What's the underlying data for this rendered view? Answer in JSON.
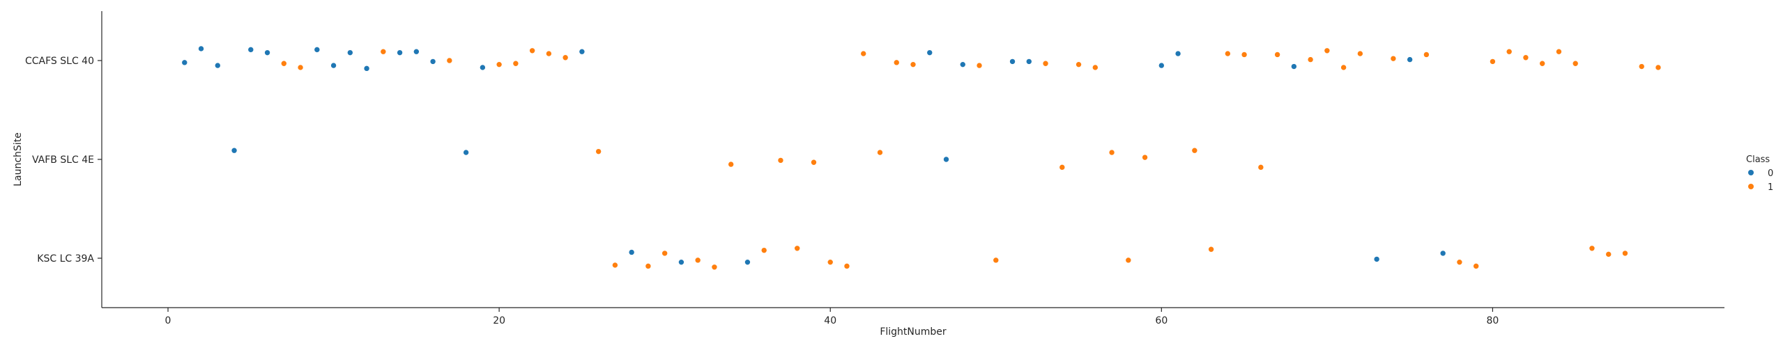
{
  "chart_data": {
    "type": "scatter",
    "xlabel": "FlightNumber",
    "ylabel": "LaunchSite",
    "xlim": [
      -4,
      94
    ],
    "x_ticks": [
      0,
      20,
      40,
      60,
      80
    ],
    "categories": [
      "CCAFS SLC 40",
      "VAFB SLC 4E",
      "KSC LC 39A"
    ],
    "legend": {
      "title": "Class",
      "placement": "right",
      "entries": [
        {
          "label": "0",
          "color": "#1f77b4"
        },
        {
          "label": "1",
          "color": "#ff7f0e"
        }
      ]
    },
    "points": [
      {
        "x": 1,
        "site": "CCAFS SLC 40",
        "class": 0,
        "jitter": -0.02
      },
      {
        "x": 2,
        "site": "CCAFS SLC 40",
        "class": 0,
        "jitter": 0.12
      },
      {
        "x": 3,
        "site": "CCAFS SLC 40",
        "class": 0,
        "jitter": -0.05
      },
      {
        "x": 4,
        "site": "VAFB SLC 4E",
        "class": 0,
        "jitter": 0.09
      },
      {
        "x": 5,
        "site": "CCAFS SLC 40",
        "class": 0,
        "jitter": 0.11
      },
      {
        "x": 6,
        "site": "CCAFS SLC 40",
        "class": 0,
        "jitter": 0.08
      },
      {
        "x": 7,
        "site": "CCAFS SLC 40",
        "class": 1,
        "jitter": -0.03
      },
      {
        "x": 8,
        "site": "CCAFS SLC 40",
        "class": 1,
        "jitter": -0.07
      },
      {
        "x": 9,
        "site": "CCAFS SLC 40",
        "class": 0,
        "jitter": 0.11
      },
      {
        "x": 10,
        "site": "CCAFS SLC 40",
        "class": 0,
        "jitter": -0.05
      },
      {
        "x": 11,
        "site": "CCAFS SLC 40",
        "class": 0,
        "jitter": 0.08
      },
      {
        "x": 12,
        "site": "CCAFS SLC 40",
        "class": 0,
        "jitter": -0.08
      },
      {
        "x": 13,
        "site": "CCAFS SLC 40",
        "class": 1,
        "jitter": 0.09
      },
      {
        "x": 14,
        "site": "CCAFS SLC 40",
        "class": 0,
        "jitter": 0.08
      },
      {
        "x": 15,
        "site": "CCAFS SLC 40",
        "class": 0,
        "jitter": 0.09
      },
      {
        "x": 16,
        "site": "CCAFS SLC 40",
        "class": 0,
        "jitter": -0.01
      },
      {
        "x": 17,
        "site": "CCAFS SLC 40",
        "class": 1,
        "jitter": 0.0
      },
      {
        "x": 18,
        "site": "VAFB SLC 4E",
        "class": 0,
        "jitter": 0.07
      },
      {
        "x": 19,
        "site": "CCAFS SLC 40",
        "class": 0,
        "jitter": -0.07
      },
      {
        "x": 20,
        "site": "CCAFS SLC 40",
        "class": 1,
        "jitter": -0.04
      },
      {
        "x": 21,
        "site": "CCAFS SLC 40",
        "class": 1,
        "jitter": -0.03
      },
      {
        "x": 22,
        "site": "CCAFS SLC 40",
        "class": 1,
        "jitter": 0.1
      },
      {
        "x": 23,
        "site": "CCAFS SLC 40",
        "class": 1,
        "jitter": 0.07
      },
      {
        "x": 24,
        "site": "CCAFS SLC 40",
        "class": 1,
        "jitter": 0.03
      },
      {
        "x": 25,
        "site": "CCAFS SLC 40",
        "class": 0,
        "jitter": 0.09
      },
      {
        "x": 26,
        "site": "VAFB SLC 4E",
        "class": 1,
        "jitter": 0.08
      },
      {
        "x": 27,
        "site": "KSC LC 39A",
        "class": 1,
        "jitter": -0.07
      },
      {
        "x": 28,
        "site": "KSC LC 39A",
        "class": 0,
        "jitter": 0.06
      },
      {
        "x": 29,
        "site": "KSC LC 39A",
        "class": 1,
        "jitter": -0.08
      },
      {
        "x": 30,
        "site": "KSC LC 39A",
        "class": 1,
        "jitter": 0.05
      },
      {
        "x": 31,
        "site": "KSC LC 39A",
        "class": 0,
        "jitter": -0.04
      },
      {
        "x": 32,
        "site": "KSC LC 39A",
        "class": 1,
        "jitter": -0.02
      },
      {
        "x": 33,
        "site": "KSC LC 39A",
        "class": 1,
        "jitter": -0.09
      },
      {
        "x": 34,
        "site": "VAFB SLC 4E",
        "class": 1,
        "jitter": -0.05
      },
      {
        "x": 35,
        "site": "KSC LC 39A",
        "class": 0,
        "jitter": -0.04
      },
      {
        "x": 36,
        "site": "KSC LC 39A",
        "class": 1,
        "jitter": 0.08
      },
      {
        "x": 37,
        "site": "VAFB SLC 4E",
        "class": 1,
        "jitter": -0.01
      },
      {
        "x": 38,
        "site": "KSC LC 39A",
        "class": 1,
        "jitter": 0.1
      },
      {
        "x": 39,
        "site": "VAFB SLC 4E",
        "class": 1,
        "jitter": -0.03
      },
      {
        "x": 40,
        "site": "KSC LC 39A",
        "class": 1,
        "jitter": -0.04
      },
      {
        "x": 41,
        "site": "KSC LC 39A",
        "class": 1,
        "jitter": -0.08
      },
      {
        "x": 42,
        "site": "CCAFS SLC 40",
        "class": 1,
        "jitter": 0.07
      },
      {
        "x": 43,
        "site": "VAFB SLC 4E",
        "class": 1,
        "jitter": 0.07
      },
      {
        "x": 44,
        "site": "CCAFS SLC 40",
        "class": 1,
        "jitter": -0.02
      },
      {
        "x": 45,
        "site": "CCAFS SLC 40",
        "class": 1,
        "jitter": -0.04
      },
      {
        "x": 46,
        "site": "CCAFS SLC 40",
        "class": 0,
        "jitter": 0.08
      },
      {
        "x": 47,
        "site": "VAFB SLC 4E",
        "class": 0,
        "jitter": 0.0
      },
      {
        "x": 48,
        "site": "CCAFS SLC 40",
        "class": 0,
        "jitter": -0.04
      },
      {
        "x": 49,
        "site": "CCAFS SLC 40",
        "class": 1,
        "jitter": -0.05
      },
      {
        "x": 50,
        "site": "KSC LC 39A",
        "class": 1,
        "jitter": -0.02
      },
      {
        "x": 51,
        "site": "CCAFS SLC 40",
        "class": 0,
        "jitter": -0.01
      },
      {
        "x": 52,
        "site": "CCAFS SLC 40",
        "class": 0,
        "jitter": -0.01
      },
      {
        "x": 53,
        "site": "CCAFS SLC 40",
        "class": 1,
        "jitter": -0.03
      },
      {
        "x": 54,
        "site": "VAFB SLC 4E",
        "class": 1,
        "jitter": -0.08
      },
      {
        "x": 55,
        "site": "CCAFS SLC 40",
        "class": 1,
        "jitter": -0.04
      },
      {
        "x": 56,
        "site": "CCAFS SLC 40",
        "class": 1,
        "jitter": -0.07
      },
      {
        "x": 57,
        "site": "VAFB SLC 4E",
        "class": 1,
        "jitter": 0.07
      },
      {
        "x": 58,
        "site": "KSC LC 39A",
        "class": 1,
        "jitter": -0.02
      },
      {
        "x": 59,
        "site": "VAFB SLC 4E",
        "class": 1,
        "jitter": 0.02
      },
      {
        "x": 60,
        "site": "CCAFS SLC 40",
        "class": 0,
        "jitter": -0.05
      },
      {
        "x": 61,
        "site": "CCAFS SLC 40",
        "class": 0,
        "jitter": 0.07
      },
      {
        "x": 62,
        "site": "VAFB SLC 4E",
        "class": 1,
        "jitter": 0.09
      },
      {
        "x": 63,
        "site": "KSC LC 39A",
        "class": 1,
        "jitter": 0.09
      },
      {
        "x": 64,
        "site": "CCAFS SLC 40",
        "class": 1,
        "jitter": 0.07
      },
      {
        "x": 65,
        "site": "CCAFS SLC 40",
        "class": 1,
        "jitter": 0.06
      },
      {
        "x": 66,
        "site": "VAFB SLC 4E",
        "class": 1,
        "jitter": -0.08
      },
      {
        "x": 67,
        "site": "CCAFS SLC 40",
        "class": 1,
        "jitter": 0.06
      },
      {
        "x": 68,
        "site": "CCAFS SLC 40",
        "class": 0,
        "jitter": -0.06
      },
      {
        "x": 69,
        "site": "CCAFS SLC 40",
        "class": 1,
        "jitter": 0.01
      },
      {
        "x": 70,
        "site": "CCAFS SLC 40",
        "class": 1,
        "jitter": 0.1
      },
      {
        "x": 71,
        "site": "CCAFS SLC 40",
        "class": 1,
        "jitter": -0.07
      },
      {
        "x": 72,
        "site": "CCAFS SLC 40",
        "class": 1,
        "jitter": 0.07
      },
      {
        "x": 73,
        "site": "KSC LC 39A",
        "class": 0,
        "jitter": -0.01
      },
      {
        "x": 74,
        "site": "CCAFS SLC 40",
        "class": 1,
        "jitter": 0.02
      },
      {
        "x": 75,
        "site": "CCAFS SLC 40",
        "class": 0,
        "jitter": 0.01
      },
      {
        "x": 76,
        "site": "CCAFS SLC 40",
        "class": 1,
        "jitter": 0.06
      },
      {
        "x": 77,
        "site": "KSC LC 39A",
        "class": 0,
        "jitter": 0.05
      },
      {
        "x": 78,
        "site": "KSC LC 39A",
        "class": 1,
        "jitter": -0.04
      },
      {
        "x": 79,
        "site": "KSC LC 39A",
        "class": 1,
        "jitter": -0.08
      },
      {
        "x": 80,
        "site": "CCAFS SLC 40",
        "class": 1,
        "jitter": -0.01
      },
      {
        "x": 81,
        "site": "CCAFS SLC 40",
        "class": 1,
        "jitter": 0.09
      },
      {
        "x": 82,
        "site": "CCAFS SLC 40",
        "class": 1,
        "jitter": 0.03
      },
      {
        "x": 83,
        "site": "CCAFS SLC 40",
        "class": 1,
        "jitter": -0.03
      },
      {
        "x": 84,
        "site": "CCAFS SLC 40",
        "class": 1,
        "jitter": 0.09
      },
      {
        "x": 85,
        "site": "CCAFS SLC 40",
        "class": 1,
        "jitter": -0.03
      },
      {
        "x": 86,
        "site": "KSC LC 39A",
        "class": 1,
        "jitter": 0.1
      },
      {
        "x": 87,
        "site": "KSC LC 39A",
        "class": 1,
        "jitter": 0.04
      },
      {
        "x": 88,
        "site": "KSC LC 39A",
        "class": 1,
        "jitter": 0.05
      },
      {
        "x": 89,
        "site": "CCAFS SLC 40",
        "class": 1,
        "jitter": -0.06
      },
      {
        "x": 90,
        "site": "CCAFS SLC 40",
        "class": 1,
        "jitter": -0.07
      }
    ]
  }
}
